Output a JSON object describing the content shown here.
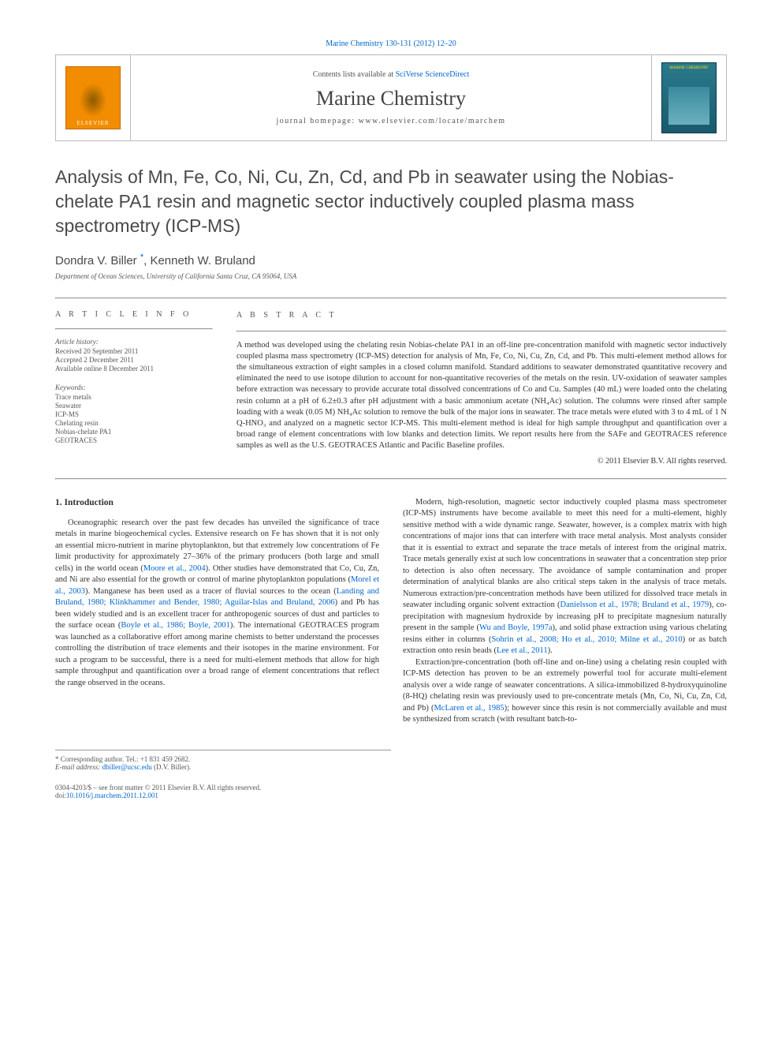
{
  "top_citation_link": "Marine Chemistry 130-131 (2012) 12–20",
  "masthead": {
    "contents_prefix": "Contents lists available at ",
    "contents_link": "SciVerse ScienceDirect",
    "journal_name": "Marine Chemistry",
    "homepage_line": "journal homepage: www.elsevier.com/locate/marchem",
    "publisher_label": "ELSEVIER",
    "cover_label": "MARINE CHEMISTRY"
  },
  "title": "Analysis of Mn, Fe, Co, Ni, Cu, Zn, Cd, and Pb in seawater using the Nobias-chelate PA1 resin and magnetic sector inductively coupled plasma mass spectrometry (ICP-MS)",
  "authors_html": "Dondra V. Biller <sup class='star'>*</sup>, Kenneth W. Bruland",
  "affiliation": "Department of Ocean Sciences, University of California Santa Cruz, CA 95064, USA",
  "article_info": {
    "label": "A R T I C L E   I N F O",
    "history_label": "Article history:",
    "history": [
      "Received 20 September 2011",
      "Accepted 2 December 2011",
      "Available online 8 December 2011"
    ],
    "keywords_label": "Keywords:",
    "keywords": [
      "Trace metals",
      "Seawater",
      "ICP-MS",
      "Chelating resin",
      "Nobias-chelate PA1",
      "GEOTRACES"
    ]
  },
  "abstract": {
    "label": "A B S T R A C T",
    "text": "A method was developed using the chelating resin Nobias-chelate PA1 in an off-line pre-concentration manifold with magnetic sector inductively coupled plasma mass spectrometry (ICP-MS) detection for analysis of Mn, Fe, Co, Ni, Cu, Zn, Cd, and Pb. This multi-element method allows for the simultaneous extraction of eight samples in a closed column manifold. Standard additions to seawater demonstrated quantitative recovery and eliminated the need to use isotope dilution to account for non-quantitative recoveries of the metals on the resin. UV-oxidation of seawater samples before extraction was necessary to provide accurate total dissolved concentrations of Co and Cu. Samples (40 mL) were loaded onto the chelating resin column at a pH of 6.2±0.3 after pH adjustment with a basic ammonium acetate (NH₄Ac) solution. The columns were rinsed after sample loading with a weak (0.05 M) NH₄Ac solution to remove the bulk of the major ions in seawater. The trace metals were eluted with 3 to 4 mL of 1 N Q-HNO₃ and analyzed on a magnetic sector ICP-MS. This multi-element method is ideal for high sample throughput and quantification over a broad range of element concentrations with low blanks and detection limits. We report results here from the SAFe and GEOTRACES reference samples as well as the U.S. GEOTRACES Atlantic and Pacific Baseline profiles.",
    "copyright": "© 2011 Elsevier B.V. All rights reserved."
  },
  "sections": {
    "intro_heading": "1. Introduction",
    "col_left": "Oceanographic research over the past few decades has unveiled the significance of trace metals in marine biogeochemical cycles. Extensive research on Fe has shown that it is not only an essential micro-nutrient in marine phytoplankton, but that extremely low concentrations of Fe limit productivity for approximately 27–36% of the primary producers (both large and small cells) in the world ocean (<a data-name='ref-link' data-interactable='true'>Moore et al., 2004</a>). Other studies have demonstrated that Co, Cu, Zn, and Ni are also essential for the growth or control of marine phytoplankton populations (<a data-name='ref-link' data-interactable='true'>Morel et al., 2003</a>). Manganese has been used as a tracer of fluvial sources to the ocean (<a data-name='ref-link' data-interactable='true'>Landing and Bruland, 1980; Klinkhammer and Bender, 1980; Aguilar-Islas and Bruland, 2006</a>) and Pb has been widely studied and is an excellent tracer for anthropogenic sources of dust and particles to the surface ocean (<a data-name='ref-link' data-interactable='true'>Boyle et al., 1986; Boyle, 2001</a>). The international GEOTRACES program was launched as a collaborative effort among marine chemists to better understand the processes controlling the distribution of trace elements and their isotopes in the marine environment. For such a program to be successful, there is a need for multi-element methods that allow for high sample throughput and quantification over a broad range of element concentrations that reflect the range observed in the oceans.",
    "col_right_p1": "Modern, high-resolution, magnetic sector inductively coupled plasma mass spectrometer (ICP-MS) instruments have become available to meet this need for a multi-element, highly sensitive method with a wide dynamic range. Seawater, however, is a complex matrix with high concentrations of major ions that can interfere with trace metal analysis. Most analysts consider that it is essential to extract and separate the trace metals of interest from the original matrix. Trace metals generally exist at such low concentrations in seawater that a concentration step prior to detection is also often necessary. The avoidance of sample contamination and proper determination of analytical blanks are also critical steps taken in the analysis of trace metals. Numerous extraction/pre-concentration methods have been utilized for dissolved trace metals in seawater including organic solvent extraction (<a data-name='ref-link' data-interactable='true'>Danielsson et al., 1978; Bruland et al., 1979</a>), co-precipitation with magnesium hydroxide by increasing pH to precipitate magnesium naturally present in the sample (<a data-name='ref-link' data-interactable='true'>Wu and Boyle, 1997a</a>), and solid phase extraction using various chelating resins either in columns (<a data-name='ref-link' data-interactable='true'>Sohrin et al., 2008; Ho et al., 2010; Milne et al., 2010</a>) or as batch extraction onto resin beads (<a data-name='ref-link' data-interactable='true'>Lee et al., 2011</a>).",
    "col_right_p2": "Extraction/pre-concentration (both off-line and on-line) using a chelating resin coupled with ICP-MS detection has proven to be an extremely powerful tool for accurate multi-element analysis over a wide range of seawater concentrations. A silica-immobilized 8-hydroxyquinoline (8-HQ) chelating resin was previously used to pre-concentrate metals (Mn, Co, Ni, Cu, Zn, Cd, and Pb) (<a data-name='ref-link' data-interactable='true'>McLaren et al., 1985</a>); however since this resin is not commercially available and must be synthesized from scratch (with resultant batch-to-"
  },
  "footnotes": {
    "corr": "* Corresponding author. Tel.: +1 831 459 2682.",
    "email_label": "E-mail address: ",
    "email": "dbiller@ucsc.edu",
    "email_suffix": " (D.V. Biller)."
  },
  "bottom": {
    "line1": "0304-4203/$ – see front matter © 2011 Elsevier B.V. All rights reserved.",
    "doi_prefix": "doi:",
    "doi": "10.1016/j.marchem.2011.12.001"
  },
  "colors": {
    "link": "#0066cc",
    "text": "#333333",
    "muted": "#555555",
    "rule": "#999999"
  }
}
